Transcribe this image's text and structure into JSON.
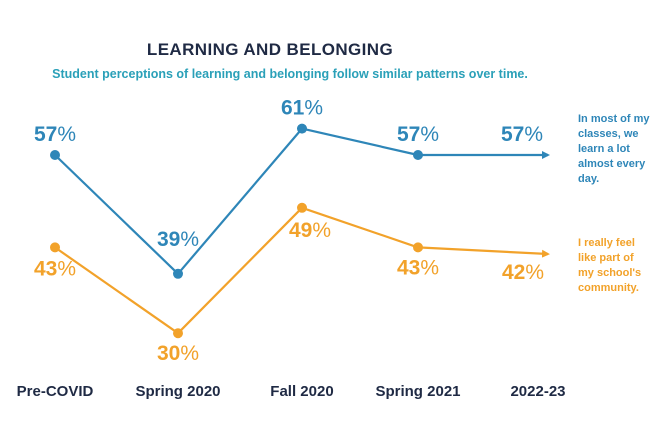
{
  "chart_data": {
    "type": "line",
    "title": "LEARNING AND BELONGING",
    "subtitle": "Student perceptions of learning and belonging follow similar patterns over time.",
    "categories": [
      "Pre-COVID",
      "Spring 2020",
      "Fall 2020",
      "Spring 2021",
      "2022-23"
    ],
    "series": [
      {
        "name": "In most of my classes, we learn a lot almost every day.",
        "values": [
          57,
          39,
          61,
          57,
          57
        ],
        "color": "#2e86b8"
      },
      {
        "name": "I really feel like part of my school's community.",
        "values": [
          43,
          30,
          49,
          43,
          42
        ],
        "color": "#f2a22a"
      }
    ],
    "value_suffix": "%",
    "ylim": [
      25,
      65
    ],
    "grid": false,
    "legend": "right",
    "arrow_on_last_segment": true
  }
}
